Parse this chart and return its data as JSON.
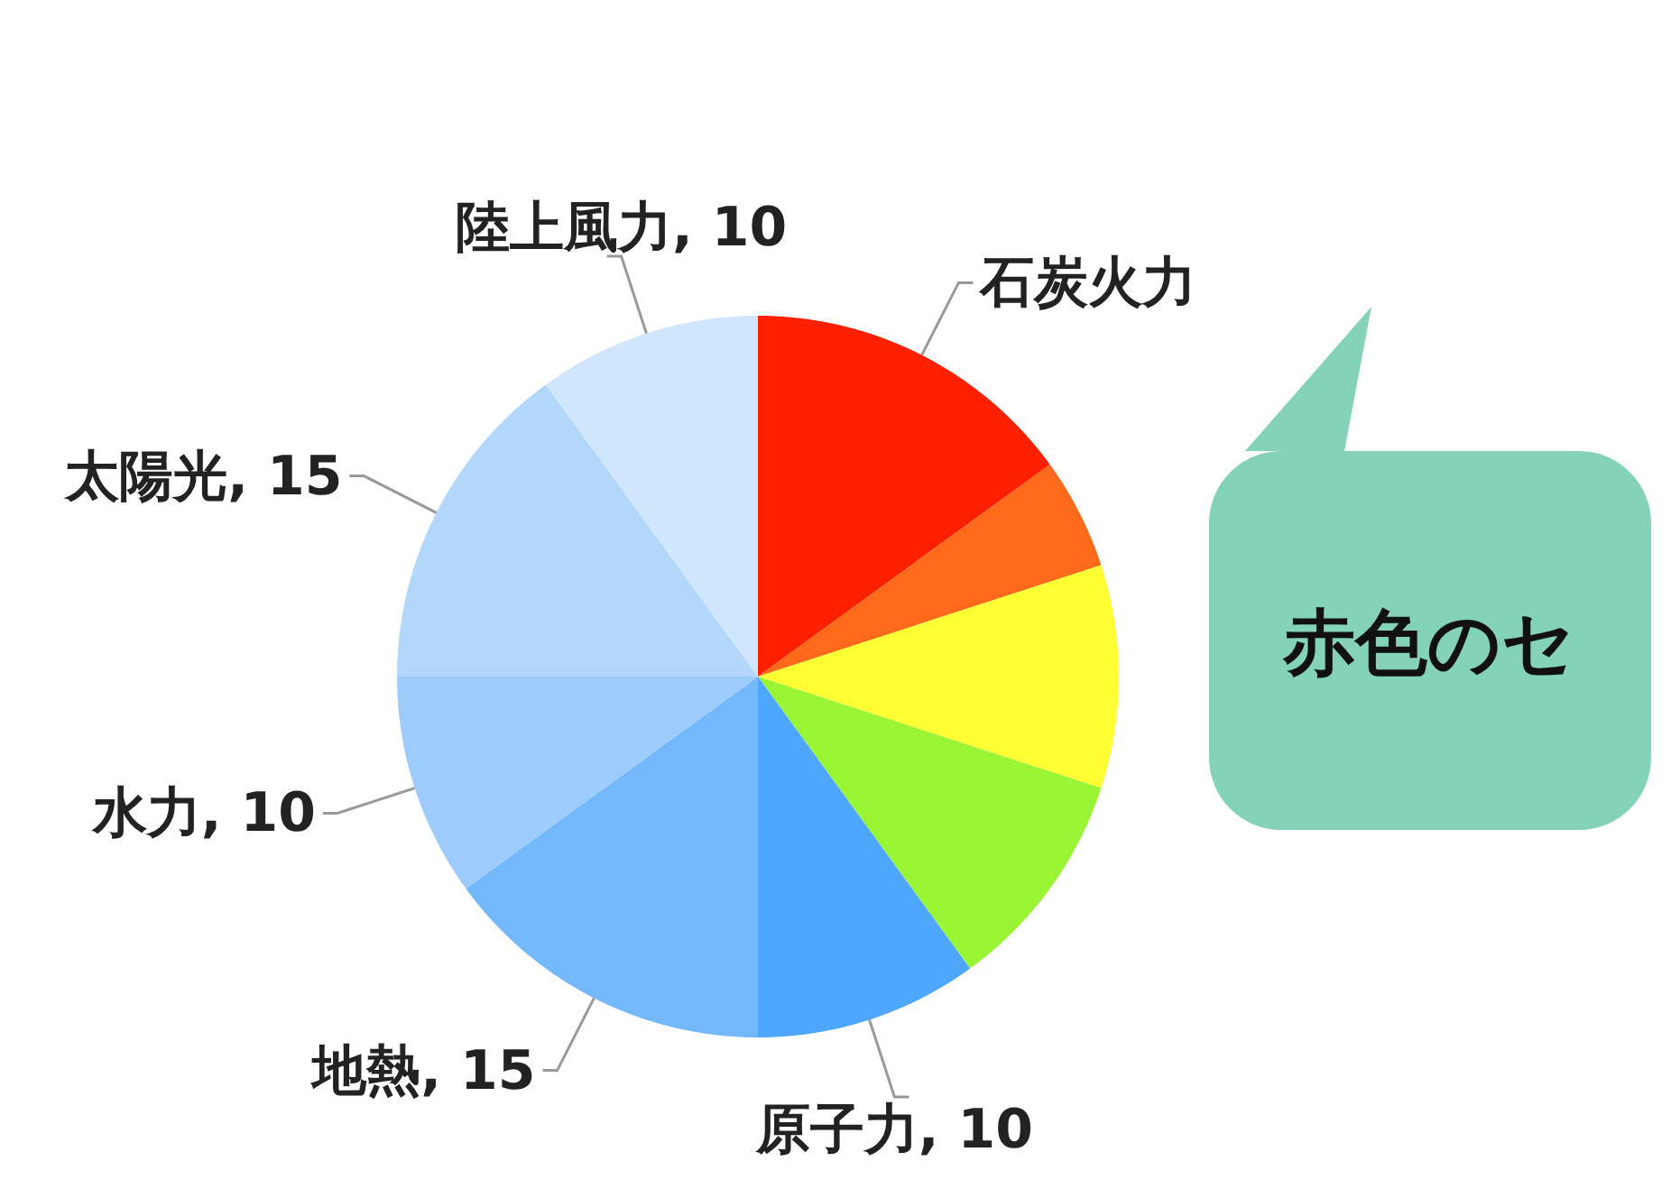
{
  "chart_data": {
    "type": "pie",
    "categories": [
      "石炭火力",
      null,
      null,
      null,
      "原子力",
      "地熱",
      "水力",
      "太陽光",
      "陸上風力"
    ],
    "values": [
      15,
      5,
      10,
      10,
      10,
      15,
      10,
      15,
      10
    ],
    "value_labels": [
      null,
      null,
      null,
      null,
      "10",
      "15",
      "10",
      "15",
      "10"
    ],
    "colors": [
      "#ff2000",
      "#ff6a1a",
      "#ffff33",
      "#99f533",
      "#4da6ff",
      "#74b8fc",
      "#9dcbfb",
      "#b3d7fb",
      "#cfe6fd"
    ],
    "annotations": [
      "赤色のセ"
    ]
  }
}
